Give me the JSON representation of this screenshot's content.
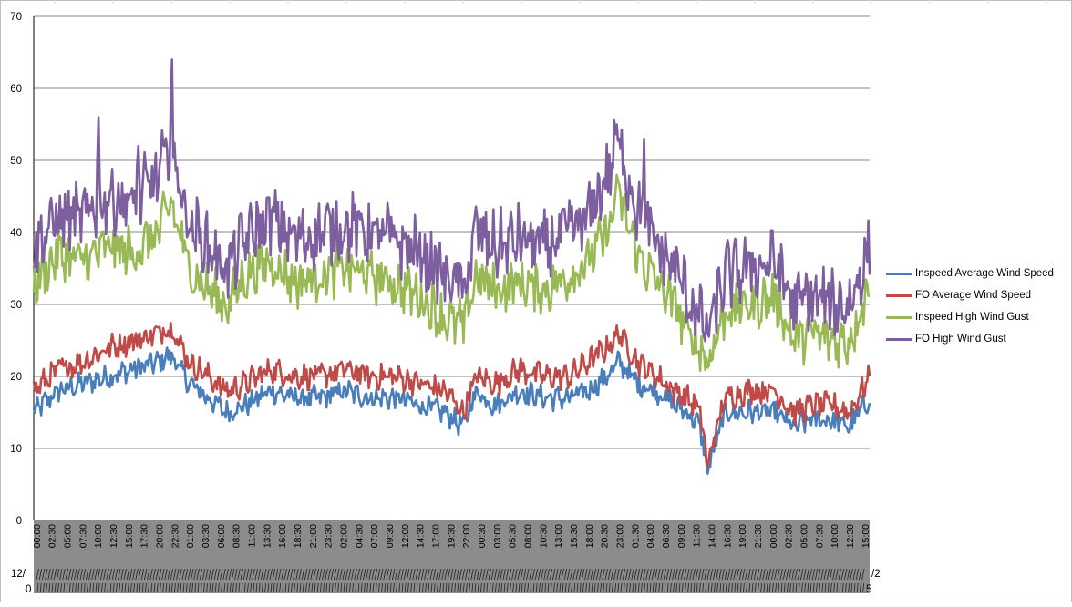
{
  "colors": {
    "inspeed_avg": "#4a7ebb",
    "fo_avg": "#be4b48",
    "inspeed_gust": "#98b954",
    "fo_gust": "#7d5fa0",
    "gridline": "#868686",
    "axis_band": "#8c8c8c"
  },
  "chart_data": {
    "type": "line",
    "title": "",
    "xlabel": "",
    "ylabel": "",
    "ylim": [
      0,
      70
    ],
    "yticks": [
      0,
      10,
      20,
      30,
      40,
      50,
      60,
      70
    ],
    "grid": true,
    "legend_position": "right",
    "points_per_series": 672,
    "x_tick_labels": [
      "00:00",
      "02:30",
      "05:00",
      "07:30",
      "10:00",
      "12:30",
      "15:00",
      "17:30",
      "20:00",
      "22:30",
      "01:00",
      "03:30",
      "06:00",
      "08:30",
      "11:00",
      "13:30",
      "16:00",
      "18:30",
      "21:00",
      "23:30",
      "02:00",
      "04:30",
      "07:00",
      "09:30",
      "12:00",
      "14:30",
      "17:00",
      "19:30",
      "22:00",
      "00:30",
      "03:00",
      "05:30",
      "08:00",
      "10:30",
      "13:00",
      "15:30",
      "18:00",
      "20:30",
      "23:00",
      "01:30",
      "04:00",
      "06:30",
      "09:00",
      "11:30",
      "14:00",
      "16:30",
      "19:00",
      "21:30",
      "00:00",
      "02:30",
      "05:00",
      "07:30",
      "10:00",
      "12:30",
      "15:00"
    ],
    "date_label_row1": "12/",
    "date_label_row2": "0",
    "date_label_end1": "/2",
    "date_label_end2": "5",
    "series": [
      {
        "name": "Inspeed Average Wind Speed",
        "color_key": "inspeed_avg",
        "anchors": [
          [
            0,
            15
          ],
          [
            20,
            18
          ],
          [
            40,
            19
          ],
          [
            60,
            20
          ],
          [
            80,
            21
          ],
          [
            100,
            22
          ],
          [
            110,
            23
          ],
          [
            125,
            19
          ],
          [
            140,
            17
          ],
          [
            155,
            15
          ],
          [
            170,
            16
          ],
          [
            190,
            18
          ],
          [
            210,
            17
          ],
          [
            230,
            17
          ],
          [
            250,
            18
          ],
          [
            270,
            17
          ],
          [
            290,
            17
          ],
          [
            310,
            16
          ],
          [
            330,
            15
          ],
          [
            345,
            13
          ],
          [
            355,
            18
          ],
          [
            370,
            16
          ],
          [
            390,
            18
          ],
          [
            410,
            17
          ],
          [
            430,
            17
          ],
          [
            445,
            18
          ],
          [
            460,
            20
          ],
          [
            470,
            22
          ],
          [
            485,
            19
          ],
          [
            500,
            18
          ],
          [
            515,
            16
          ],
          [
            525,
            15
          ],
          [
            535,
            13
          ],
          [
            541,
            7
          ],
          [
            555,
            15
          ],
          [
            575,
            15
          ],
          [
            595,
            15
          ],
          [
            610,
            13
          ],
          [
            625,
            14
          ],
          [
            640,
            14
          ],
          [
            655,
            13
          ],
          [
            671,
            17
          ]
        ]
      },
      {
        "name": "FO Average Wind Speed",
        "color_key": "fo_avg",
        "anchors": [
          [
            0,
            18
          ],
          [
            20,
            21
          ],
          [
            40,
            22
          ],
          [
            60,
            24
          ],
          [
            80,
            25
          ],
          [
            100,
            26
          ],
          [
            110,
            27
          ],
          [
            125,
            22
          ],
          [
            140,
            20
          ],
          [
            155,
            18
          ],
          [
            170,
            19
          ],
          [
            190,
            21
          ],
          [
            210,
            20
          ],
          [
            230,
            20
          ],
          [
            250,
            21
          ],
          [
            270,
            20
          ],
          [
            290,
            20
          ],
          [
            310,
            19
          ],
          [
            330,
            18
          ],
          [
            345,
            15
          ],
          [
            355,
            20
          ],
          [
            370,
            19
          ],
          [
            390,
            21
          ],
          [
            410,
            20
          ],
          [
            430,
            20
          ],
          [
            445,
            22
          ],
          [
            460,
            24
          ],
          [
            470,
            26
          ],
          [
            485,
            22
          ],
          [
            500,
            20
          ],
          [
            515,
            18
          ],
          [
            525,
            17
          ],
          [
            535,
            15
          ],
          [
            541,
            8
          ],
          [
            555,
            17
          ],
          [
            575,
            18
          ],
          [
            595,
            18
          ],
          [
            610,
            15
          ],
          [
            625,
            16
          ],
          [
            640,
            16
          ],
          [
            655,
            15
          ],
          [
            671,
            20
          ]
        ]
      },
      {
        "name": "Inspeed High Wind Gust",
        "color_key": "inspeed_gust",
        "anchors": [
          [
            0,
            33
          ],
          [
            20,
            37
          ],
          [
            40,
            36
          ],
          [
            60,
            38
          ],
          [
            80,
            37
          ],
          [
            100,
            40
          ],
          [
            110,
            44
          ],
          [
            125,
            35
          ],
          [
            140,
            32
          ],
          [
            155,
            30
          ],
          [
            170,
            34
          ],
          [
            190,
            36
          ],
          [
            210,
            33
          ],
          [
            230,
            34
          ],
          [
            250,
            35
          ],
          [
            270,
            34
          ],
          [
            290,
            33
          ],
          [
            310,
            31
          ],
          [
            330,
            28
          ],
          [
            345,
            27
          ],
          [
            355,
            34
          ],
          [
            370,
            32
          ],
          [
            390,
            33
          ],
          [
            410,
            32
          ],
          [
            430,
            34
          ],
          [
            445,
            36
          ],
          [
            460,
            40
          ],
          [
            470,
            45
          ],
          [
            485,
            37
          ],
          [
            500,
            33
          ],
          [
            515,
            30
          ],
          [
            525,
            26
          ],
          [
            535,
            24
          ],
          [
            541,
            22
          ],
          [
            555,
            29
          ],
          [
            575,
            30
          ],
          [
            595,
            31
          ],
          [
            610,
            25
          ],
          [
            625,
            26
          ],
          [
            640,
            25
          ],
          [
            655,
            25
          ],
          [
            671,
            33
          ]
        ]
      },
      {
        "name": "FO High Wind Gust",
        "color_key": "fo_gust",
        "anchors": [
          [
            0,
            38
          ],
          [
            20,
            42
          ],
          [
            40,
            42
          ],
          [
            60,
            45
          ],
          [
            80,
            44
          ],
          [
            100,
            48
          ],
          [
            110,
            52
          ],
          [
            125,
            41
          ],
          [
            140,
            38
          ],
          [
            155,
            35
          ],
          [
            170,
            39
          ],
          [
            190,
            42
          ],
          [
            210,
            39
          ],
          [
            230,
            40
          ],
          [
            250,
            41
          ],
          [
            270,
            40
          ],
          [
            290,
            39
          ],
          [
            310,
            37
          ],
          [
            330,
            34
          ],
          [
            345,
            32
          ],
          [
            355,
            40
          ],
          [
            370,
            38
          ],
          [
            390,
            39
          ],
          [
            410,
            38
          ],
          [
            430,
            40
          ],
          [
            445,
            42
          ],
          [
            460,
            48
          ],
          [
            470,
            52
          ],
          [
            485,
            43
          ],
          [
            500,
            38
          ],
          [
            515,
            35
          ],
          [
            525,
            31
          ],
          [
            535,
            28
          ],
          [
            541,
            26
          ],
          [
            555,
            34
          ],
          [
            575,
            35
          ],
          [
            595,
            36
          ],
          [
            610,
            30
          ],
          [
            625,
            31
          ],
          [
            640,
            30
          ],
          [
            655,
            30
          ],
          [
            671,
            38
          ]
        ]
      }
    ],
    "spikes": [
      {
        "series": 3,
        "index": 52,
        "y": 56
      },
      {
        "series": 3,
        "index": 84,
        "y": 52
      },
      {
        "series": 3,
        "index": 111,
        "y": 64
      },
      {
        "series": 3,
        "index": 468,
        "y": 55
      },
      {
        "series": 3,
        "index": 490,
        "y": 53
      },
      {
        "series": 2,
        "index": 468,
        "y": 48
      },
      {
        "series": 0,
        "index": 541,
        "y": 6.5
      },
      {
        "series": 1,
        "index": 541,
        "y": 7.5
      }
    ]
  }
}
